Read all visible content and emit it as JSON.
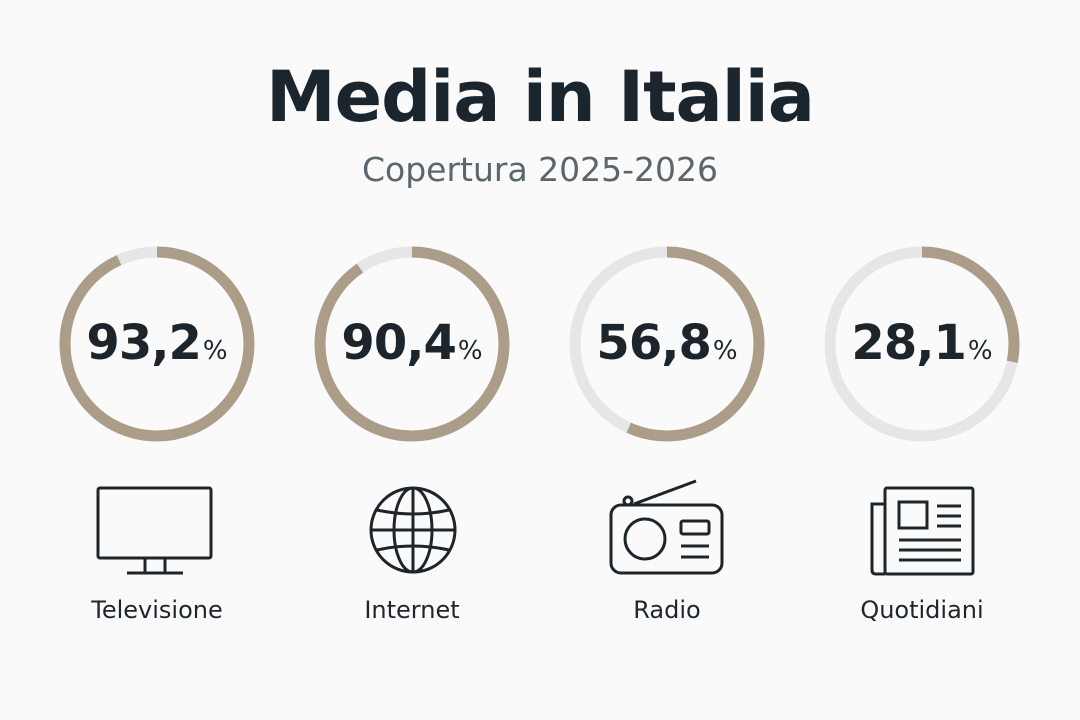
{
  "header": {
    "title": "Media in Italia",
    "subtitle": "Copertura 2025-2026"
  },
  "colors": {
    "accent": "#ac9d88",
    "track": "#e6e6e6",
    "text": "#1b252d"
  },
  "chart_data": {
    "type": "pie",
    "title": "Media in Italia",
    "subtitle": "Copertura 2025-2026",
    "unit": "%",
    "items": [
      {
        "label": "Televisione",
        "value": 93.2,
        "display_value": "93,2",
        "icon": "tv-icon"
      },
      {
        "label": "Internet",
        "value": 90.4,
        "display_value": "90,4",
        "icon": "globe-icon"
      },
      {
        "label": "Radio",
        "value": 56.8,
        "display_value": "56,8",
        "icon": "radio-icon"
      },
      {
        "label": "Quotidiani",
        "value": 28.1,
        "display_value": "28,1",
        "icon": "newspaper-icon"
      }
    ]
  }
}
